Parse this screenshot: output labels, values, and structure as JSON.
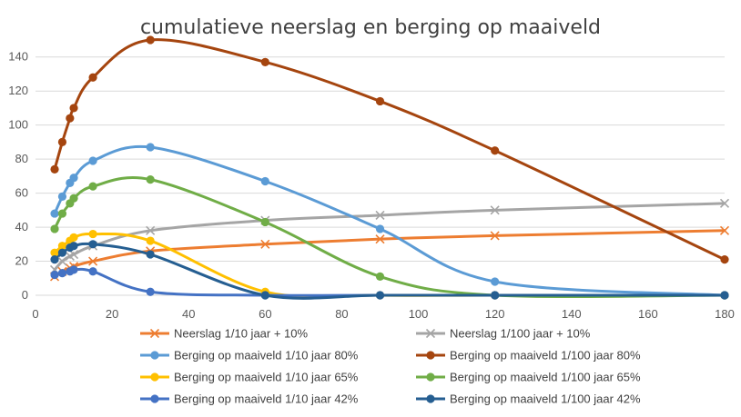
{
  "chart_data": {
    "type": "line",
    "title": "cumulatieve neerslag en berging op maaiveld",
    "xlabel": "",
    "ylabel": "",
    "xlim": [
      0,
      180
    ],
    "ylim": [
      0,
      150
    ],
    "xticks": [
      0,
      20,
      40,
      60,
      80,
      100,
      120,
      140,
      160,
      180
    ],
    "yticks": [
      0,
      20,
      40,
      60,
      80,
      100,
      120,
      140
    ],
    "grid": "horizontal",
    "legend_position": "bottom",
    "series": [
      {
        "name": "Neerslag 1/10 jaar + 10%",
        "color": "#ed7d31",
        "marker": "x",
        "x": [
          5,
          7,
          9,
          10,
          15,
          30,
          60,
          90,
          120,
          180
        ],
        "y": [
          11,
          14,
          16,
          17,
          20,
          26,
          30,
          33,
          35,
          38
        ]
      },
      {
        "name": "Neerslag 1/100 jaar + 10%",
        "color": "#a5a5a5",
        "marker": "x",
        "x": [
          5,
          7,
          9,
          10,
          15,
          30,
          60,
          90,
          120,
          180
        ],
        "y": [
          15,
          20,
          23,
          24,
          29,
          38,
          44,
          47,
          50,
          54
        ]
      },
      {
        "name": "Berging op maaiveld 1/10 jaar 80%",
        "color": "#5b9bd5",
        "marker": "circle",
        "x": [
          5,
          7,
          9,
          10,
          15,
          30,
          60,
          90,
          120,
          180
        ],
        "y": [
          48,
          58,
          66,
          69,
          79,
          87,
          67,
          39,
          8,
          0
        ]
      },
      {
        "name": "Berging op maaiveld 1/100 jaar 80%",
        "color": "#a5450f",
        "marker": "circle",
        "x": [
          5,
          7,
          9,
          10,
          15,
          30,
          60,
          90,
          120,
          180
        ],
        "y": [
          74,
          90,
          104,
          110,
          128,
          150,
          137,
          114,
          85,
          21
        ]
      },
      {
        "name": "Berging op maaiveld 1/10 jaar 65%",
        "color": "#ffc000",
        "marker": "circle",
        "x": [
          5,
          7,
          9,
          10,
          15,
          30,
          60,
          90,
          120,
          180
        ],
        "y": [
          25,
          29,
          32,
          34,
          36,
          32,
          2,
          0,
          0,
          0
        ]
      },
      {
        "name": "Berging op maaiveld 1/100 jaar 65%",
        "color": "#70ad47",
        "marker": "circle",
        "x": [
          5,
          7,
          9,
          10,
          15,
          30,
          60,
          90,
          120,
          180
        ],
        "y": [
          39,
          48,
          54,
          57,
          64,
          68,
          43,
          11,
          0,
          0
        ]
      },
      {
        "name": "Berging op maaiveld 1/10 jaar 42%",
        "color": "#4472c4",
        "marker": "circle",
        "x": [
          5,
          7,
          9,
          10,
          15,
          30,
          60,
          90,
          120,
          180
        ],
        "y": [
          12,
          13,
          14,
          15,
          14,
          2,
          0,
          0,
          0,
          0
        ]
      },
      {
        "name": "Berging op maaiveld 1/100 jaar 42%",
        "color": "#255e91",
        "marker": "circle",
        "x": [
          5,
          7,
          9,
          10,
          15,
          30,
          60,
          90,
          120,
          180
        ],
        "y": [
          21,
          25,
          28,
          29,
          30,
          24,
          0,
          0,
          0,
          0
        ]
      }
    ]
  }
}
